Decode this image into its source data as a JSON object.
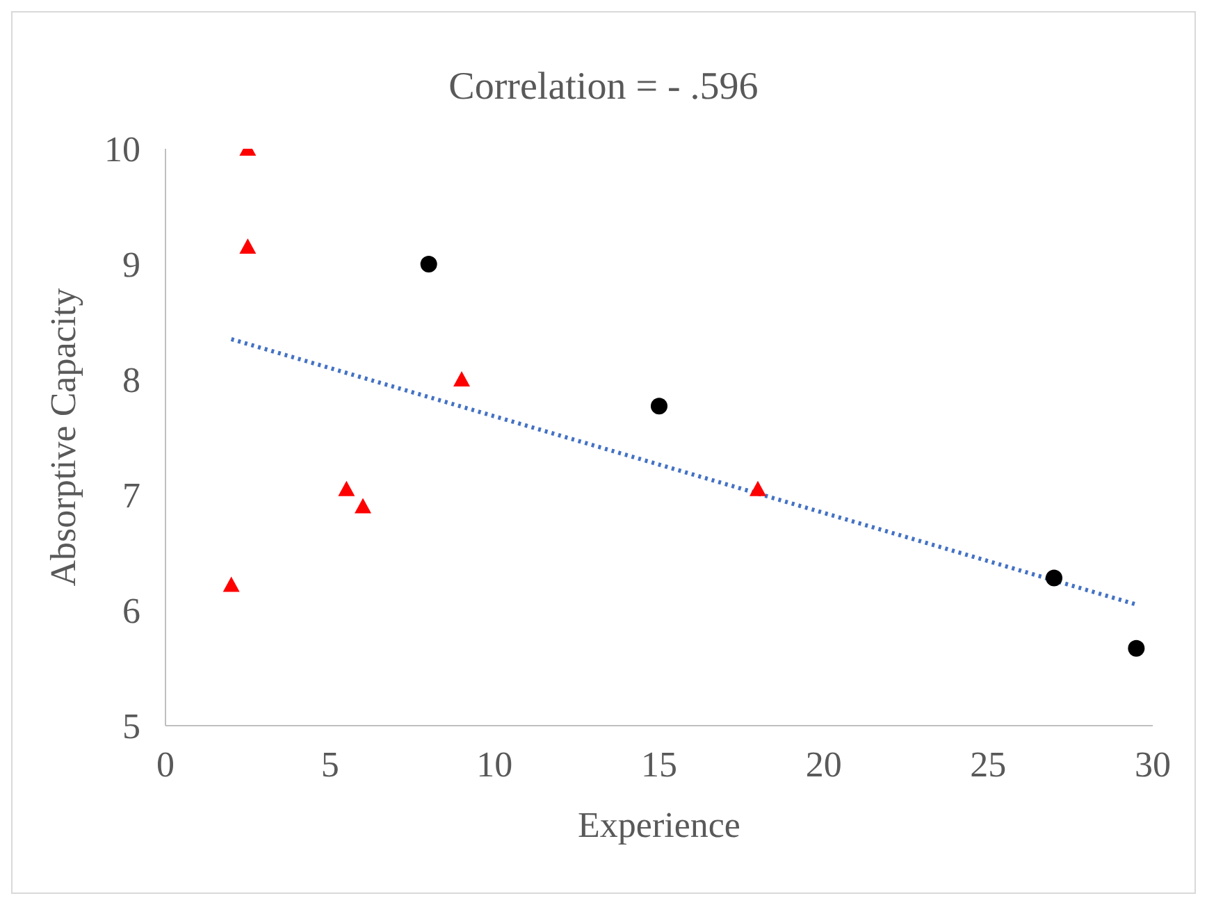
{
  "chart_data": {
    "type": "scatter",
    "title": "Correlation = - .596",
    "xlabel": "Experience",
    "ylabel": "Absorptive Capacity",
    "xlim": [
      0,
      30
    ],
    "xticks": [
      0,
      5,
      10,
      15,
      20,
      25,
      30
    ],
    "ylim": [
      5,
      10
    ],
    "yticks": [
      5,
      6,
      7,
      8,
      9,
      10
    ],
    "grid": false,
    "legend": false,
    "series": [
      {
        "marker": "triangle",
        "color": "#ff0000",
        "x": [
          2.5,
          2.5,
          9,
          5.5,
          6,
          2,
          18
        ],
        "values": [
          10,
          9.15,
          8,
          7.05,
          6.9,
          6.22,
          7.05
        ]
      },
      {
        "marker": "circle",
        "color": "#000000",
        "x": [
          8,
          15,
          27,
          29.5
        ],
        "values": [
          9,
          7.77,
          6.28,
          5.67
        ]
      },
      {
        "type": "line",
        "marker": "none",
        "line_style": "dotted",
        "color": "#4472c4",
        "x": [
          2,
          29.5
        ],
        "values": [
          8.35,
          6.05
        ]
      }
    ]
  }
}
